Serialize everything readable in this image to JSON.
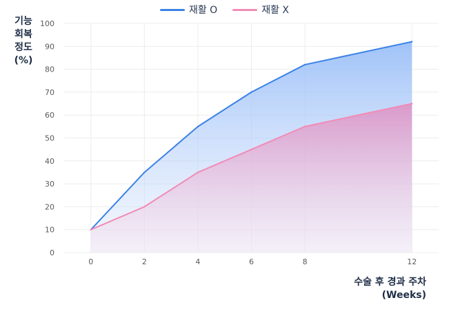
{
  "chart_data": {
    "type": "area",
    "x": [
      0,
      2,
      4,
      6,
      8,
      12
    ],
    "series": [
      {
        "name": "재활 O",
        "color": "#3b82e6",
        "values": [
          10,
          35,
          55,
          70,
          82,
          92
        ]
      },
      {
        "name": "재활 X",
        "color": "#f28bb5",
        "values": [
          10,
          20,
          35,
          45,
          55,
          65
        ]
      }
    ],
    "xticks": [
      "0",
      "2",
      "4",
      "6",
      "8",
      "12"
    ],
    "yticks": [
      "0",
      "10",
      "20",
      "30",
      "40",
      "50",
      "60",
      "70",
      "80",
      "90",
      "100"
    ],
    "xlabel": "수술 후 경과 주차\n(Weeks)",
    "ylabel": "기능\n회복\n정도\n(%)",
    "ylim": [
      0,
      100
    ],
    "xlim": [
      -1,
      13
    ],
    "grid": true,
    "legend_position": "top-center"
  }
}
